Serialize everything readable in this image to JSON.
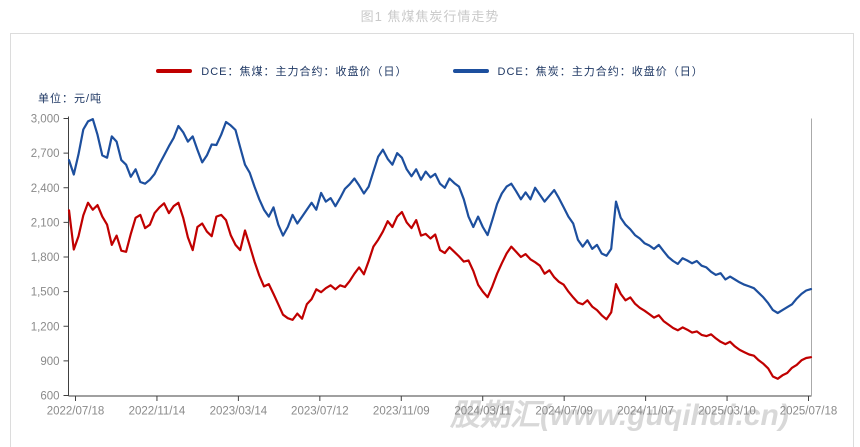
{
  "page": {
    "title": "图1 焦煤焦炭行情走势",
    "watermark": "股期汇(www.guqihui.cn)"
  },
  "legend": [
    {
      "label": "DCE：焦煤：主力合约：收盘价（日）",
      "color": "#c00000"
    },
    {
      "label": "DCE：焦炭：主力合约：收盘价（日）",
      "color": "#1d4f9e"
    }
  ],
  "colors": {
    "title_text": "#c9c9c9",
    "legend_text": "#1f3864",
    "axis_line": "#404040",
    "axis_text": "#8a8a8a",
    "panel_border": "#dcdcdc",
    "right_plot_border": "#aaaaaa",
    "watermark_text": "#d8d8d8",
    "coking_coal_line": "#c00000",
    "coke_line": "#1d4f9e"
  },
  "chart_data": {
    "type": "line",
    "title": "图1 焦煤焦炭行情走势",
    "unit_label": "单位：元/吨",
    "ylabel": "元/吨",
    "ylim": [
      600,
      3000
    ],
    "ytick_interval": 300,
    "yticks": [
      600,
      900,
      1200,
      1500,
      1800,
      2100,
      2400,
      2700,
      3000
    ],
    "yticklabels": [
      "600",
      "900",
      "1,200",
      "1,500",
      "1,800",
      "2,100",
      "2,400",
      "2,700",
      "3,000"
    ],
    "xticks": [
      "2022/07/18",
      "2022/11/14",
      "2023/03/14",
      "2023/07/12",
      "2023/11/09",
      "2024/03/11",
      "2024/07/09",
      "2024/11/07",
      "2025/03/10",
      "2025/07/18"
    ],
    "x_sampling": "weekly from 2022/07/18 to 2025/07/18 (157 points)",
    "grid": false,
    "legend_position": "top",
    "series": [
      {
        "name": "DCE：焦煤：主力合约：收盘价（日）",
        "color": "#c00000",
        "values": [
          2205,
          1865,
          1980,
          2160,
          2270,
          2210,
          2250,
          2150,
          2080,
          1905,
          1985,
          1855,
          1845,
          2000,
          2140,
          2165,
          2050,
          2080,
          2180,
          2230,
          2265,
          2180,
          2240,
          2270,
          2140,
          1970,
          1860,
          2060,
          2090,
          2020,
          1980,
          2150,
          2165,
          2120,
          1990,
          1905,
          1860,
          2030,
          1900,
          1760,
          1640,
          1545,
          1565,
          1480,
          1390,
          1300,
          1270,
          1255,
          1310,
          1265,
          1390,
          1435,
          1520,
          1495,
          1530,
          1555,
          1520,
          1555,
          1540,
          1590,
          1655,
          1710,
          1650,
          1765,
          1890,
          1950,
          2020,
          2110,
          2060,
          2150,
          2190,
          2100,
          2050,
          2120,
          1985,
          2000,
          1960,
          1995,
          1860,
          1835,
          1885,
          1845,
          1805,
          1760,
          1770,
          1680,
          1560,
          1500,
          1452,
          1545,
          1655,
          1745,
          1830,
          1890,
          1845,
          1800,
          1825,
          1780,
          1755,
          1725,
          1655,
          1685,
          1625,
          1585,
          1560,
          1500,
          1450,
          1405,
          1390,
          1425,
          1370,
          1340,
          1295,
          1260,
          1320,
          1565,
          1480,
          1425,
          1450,
          1395,
          1360,
          1335,
          1305,
          1275,
          1295,
          1245,
          1215,
          1185,
          1165,
          1190,
          1170,
          1145,
          1155,
          1125,
          1115,
          1130,
          1095,
          1065,
          1045,
          1065,
          1025,
          995,
          975,
          955,
          945,
          905,
          875,
          835,
          765,
          745,
          775,
          795,
          840,
          865,
          905,
          925,
          932
        ]
      },
      {
        "name": "DCE：焦炭：主力合约：收盘价（日）",
        "color": "#1d4f9e",
        "values": [
          2640,
          2515,
          2690,
          2905,
          2975,
          2995,
          2860,
          2680,
          2660,
          2845,
          2800,
          2640,
          2600,
          2495,
          2560,
          2450,
          2435,
          2470,
          2520,
          2605,
          2680,
          2760,
          2830,
          2935,
          2880,
          2800,
          2845,
          2730,
          2620,
          2680,
          2775,
          2770,
          2860,
          2970,
          2940,
          2900,
          2750,
          2600,
          2530,
          2410,
          2300,
          2210,
          2150,
          2230,
          2080,
          1985,
          2060,
          2165,
          2090,
          2150,
          2210,
          2270,
          2210,
          2355,
          2280,
          2310,
          2240,
          2310,
          2390,
          2430,
          2480,
          2420,
          2350,
          2410,
          2540,
          2670,
          2730,
          2650,
          2600,
          2700,
          2660,
          2560,
          2500,
          2560,
          2470,
          2540,
          2490,
          2520,
          2435,
          2400,
          2480,
          2440,
          2410,
          2300,
          2150,
          2060,
          2150,
          2060,
          1990,
          2120,
          2260,
          2350,
          2410,
          2435,
          2370,
          2300,
          2360,
          2300,
          2400,
          2340,
          2280,
          2330,
          2380,
          2310,
          2230,
          2150,
          2090,
          1950,
          1890,
          1945,
          1870,
          1905,
          1830,
          1810,
          1870,
          2280,
          2140,
          2080,
          2040,
          1990,
          1960,
          1920,
          1900,
          1870,
          1905,
          1850,
          1800,
          1765,
          1740,
          1790,
          1770,
          1745,
          1765,
          1725,
          1710,
          1672,
          1645,
          1660,
          1605,
          1630,
          1605,
          1580,
          1560,
          1545,
          1530,
          1490,
          1450,
          1400,
          1340,
          1315,
          1340,
          1365,
          1390,
          1440,
          1480,
          1510,
          1522
        ]
      }
    ]
  }
}
